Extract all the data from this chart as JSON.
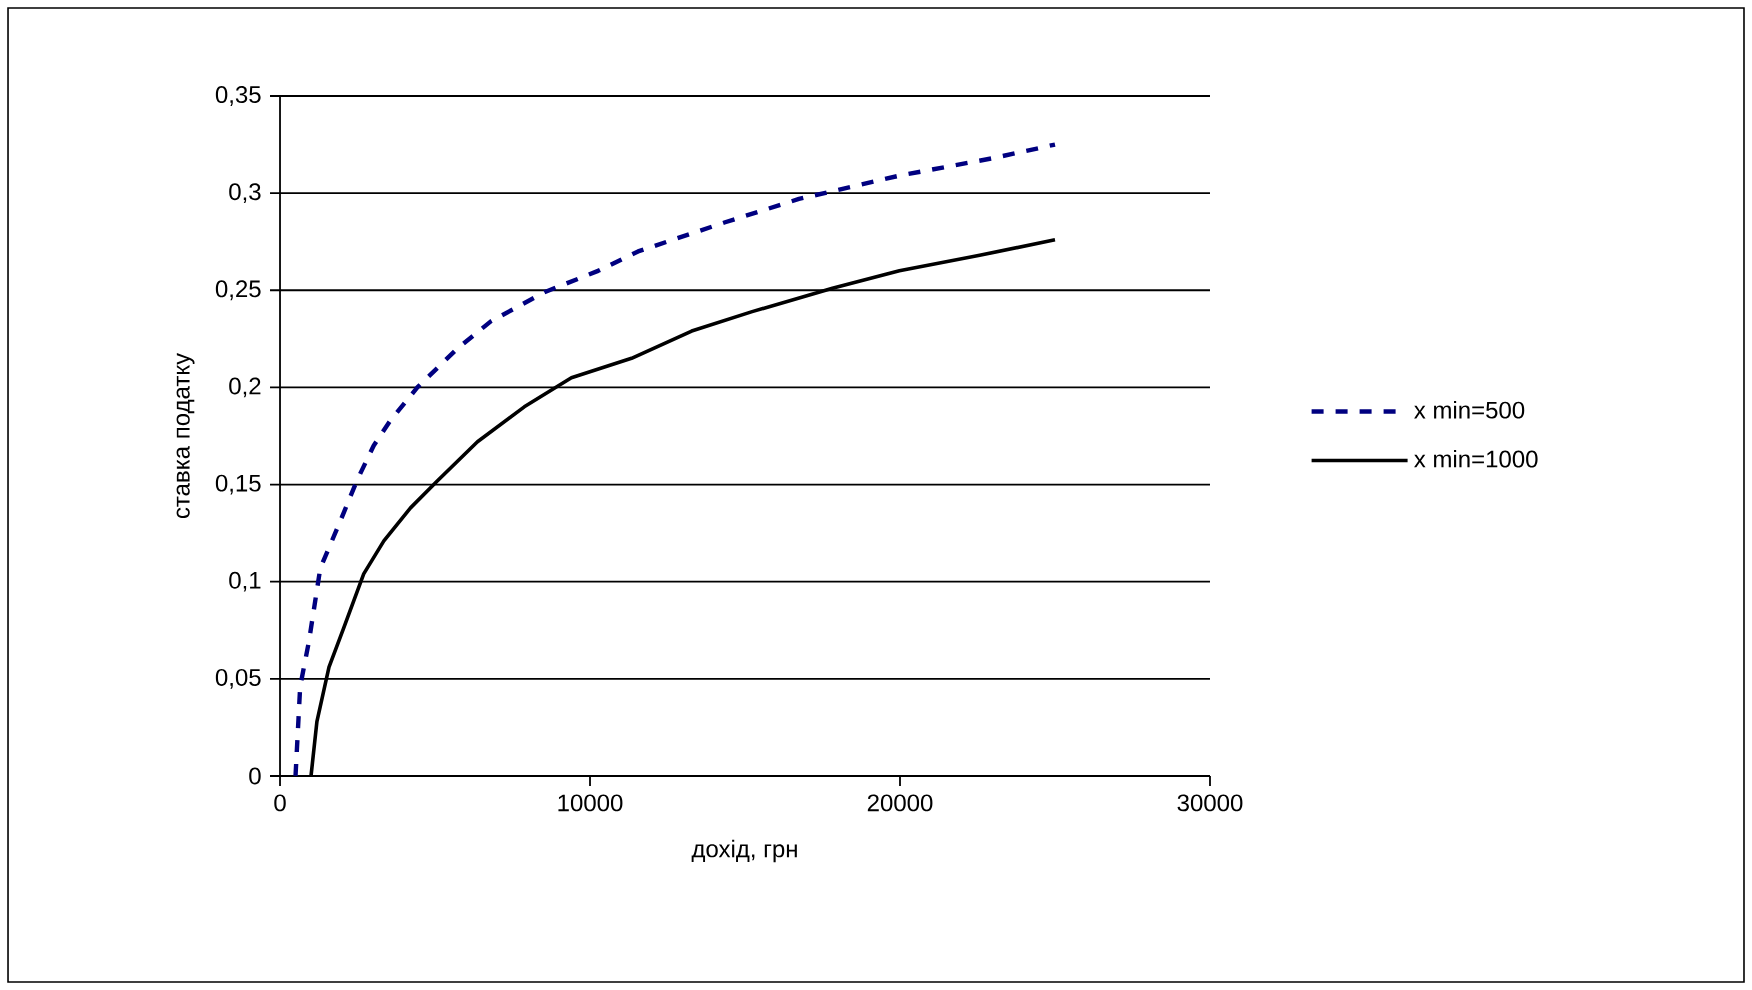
{
  "chart_data": {
    "type": "line",
    "xlabel": "дохід, грн",
    "ylabel": "ставка податку",
    "xlim": [
      0,
      30000
    ],
    "xticks": [
      0,
      10000,
      20000,
      30000
    ],
    "ylim": [
      0,
      0.35
    ],
    "yticks": [
      {
        "value": 0,
        "label": "0"
      },
      {
        "value": 0.05,
        "label": "0,05"
      },
      {
        "value": 0.1,
        "label": "0,1"
      },
      {
        "value": 0.15,
        "label": "0,15"
      },
      {
        "value": 0.2,
        "label": "0,2"
      },
      {
        "value": 0.25,
        "label": "0,25"
      },
      {
        "value": 0.3,
        "label": "0,3"
      },
      {
        "value": 0.35,
        "label": "0,35"
      }
    ],
    "grid": "y",
    "legend": "right",
    "marker": "none",
    "series": [
      {
        "name": "x min=500",
        "color": "#000080",
        "line_style": "dashed",
        "x": [
          500,
          650,
          930,
          1300,
          1940,
          2480,
          3020,
          3560,
          4430,
          5720,
          6800,
          8530,
          10260,
          11550,
          14360,
          16740,
          19980,
          23000,
          25000
        ],
        "values": [
          0,
          0.046,
          0.069,
          0.107,
          0.131,
          0.152,
          0.17,
          0.183,
          0.2,
          0.22,
          0.234,
          0.249,
          0.26,
          0.27,
          0.285,
          0.297,
          0.309,
          0.318,
          0.325
        ]
      },
      {
        "name": "x min=1000",
        "color": "#000000",
        "line_style": "solid",
        "x": [
          1000,
          1190,
          1580,
          2050,
          2700,
          3350,
          4210,
          5080,
          6370,
          7880,
          9400,
          11340,
          13280,
          15230,
          17820,
          19980,
          22570,
          25000
        ],
        "values": [
          0,
          0.028,
          0.056,
          0.076,
          0.104,
          0.121,
          0.138,
          0.152,
          0.172,
          0.19,
          0.205,
          0.215,
          0.229,
          0.239,
          0.251,
          0.26,
          0.268,
          0.276
        ]
      }
    ]
  }
}
